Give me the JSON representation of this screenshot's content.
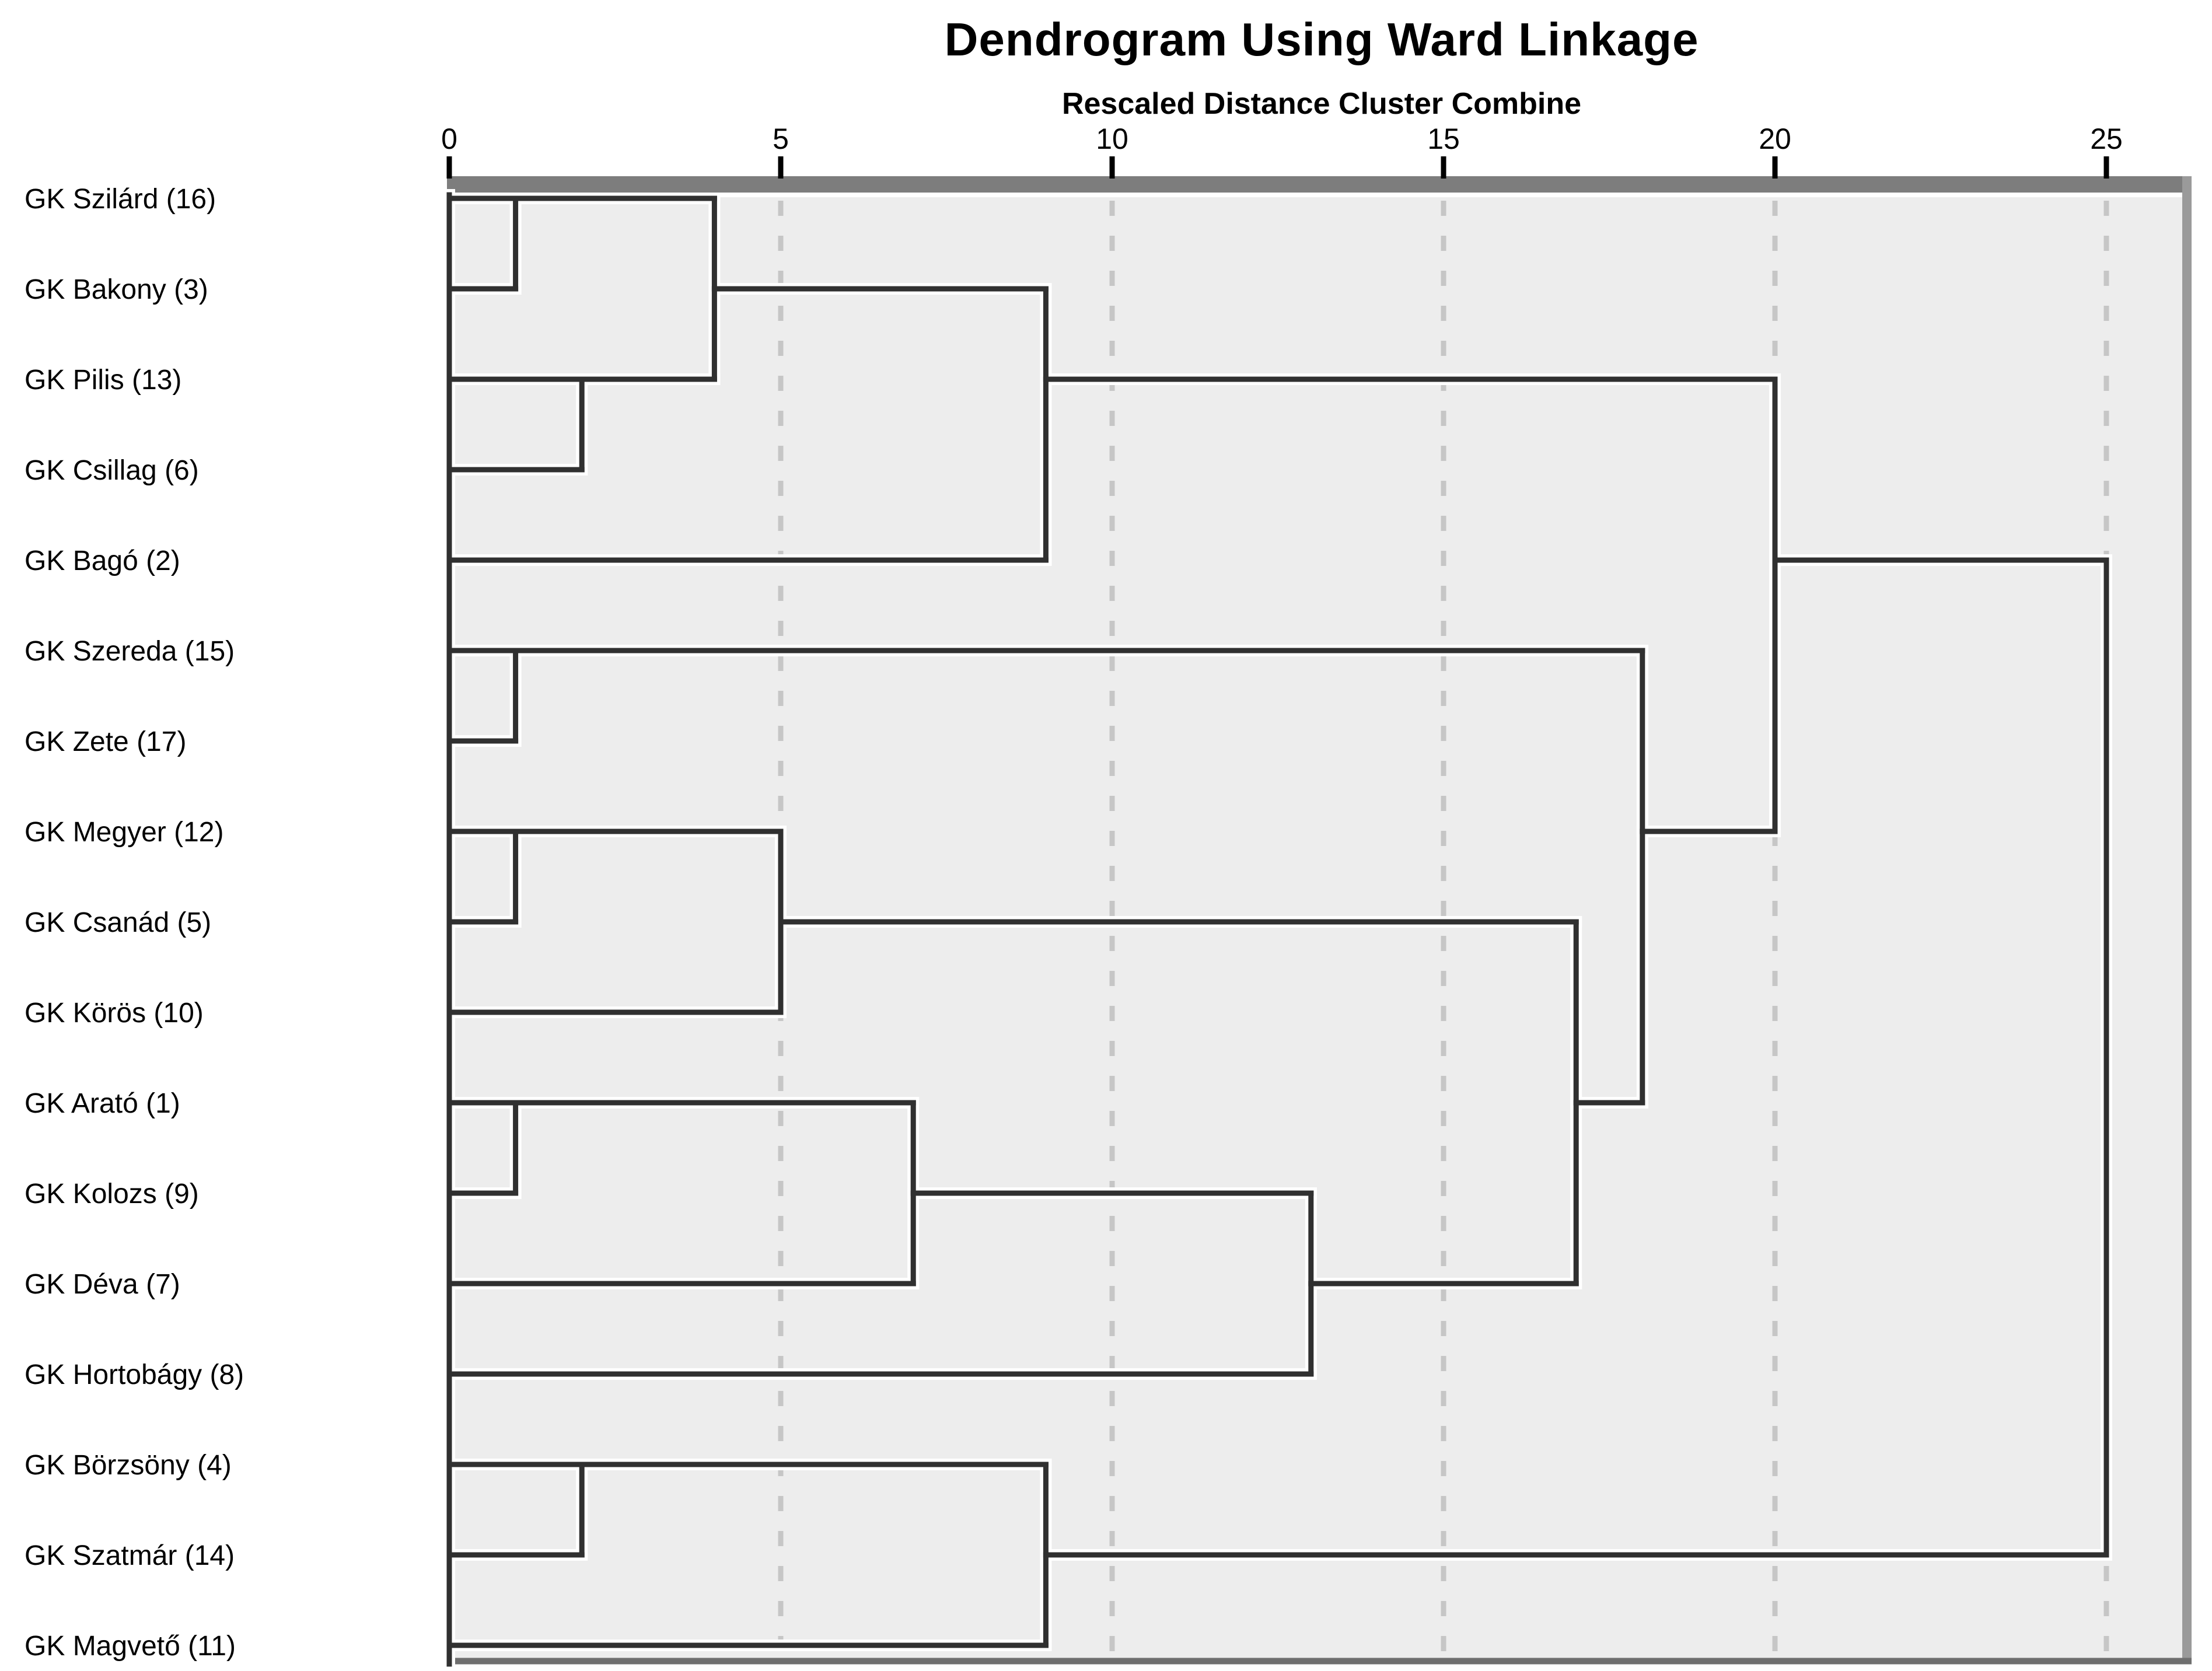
{
  "chart_data": {
    "type": "dendrogram",
    "title": "Dendrogram Using Ward Linkage",
    "subtitle": "Rescaled Distance Cluster Combine",
    "orientation": "horizontal",
    "xlim": [
      0,
      25
    ],
    "axis_ticks": [
      0,
      5,
      10,
      15,
      20,
      25
    ],
    "grid": "dashed vertical gridlines at 5,10,15,20,25",
    "legend_position": "none",
    "leaves": [
      "GK Szilárd (16)",
      "GK Bakony (3)",
      "GK Pilis (13)",
      "GK Csillag (6)",
      "GK Bagó (2)",
      "GK Szereda (15)",
      "GK Zete (17)",
      "GK Megyer (12)",
      "GK Csanád (5)",
      "GK Körös (10)",
      "GK Arató (1)",
      "GK Kolozs (9)",
      "GK Déva (7)",
      "GK Hortobágy (8)",
      "GK Börzsöny (4)",
      "GK Szatmár (14)",
      "GK Magvető (11)"
    ],
    "merges": [
      {
        "id": "m1",
        "a": "0",
        "b": "1",
        "distance": 1,
        "out_row": 0
      },
      {
        "id": "m2",
        "a": "2",
        "b": "3",
        "distance": 2,
        "out_row": 2
      },
      {
        "id": "m3",
        "a": "m1",
        "b": "m2",
        "distance": 4,
        "out_row": 1
      },
      {
        "id": "m4",
        "a": "m3",
        "b": "4",
        "distance": 9,
        "out_row": 2
      },
      {
        "id": "m5",
        "a": "5",
        "b": "6",
        "distance": 1,
        "out_row": 5
      },
      {
        "id": "m6",
        "a": "7",
        "b": "8",
        "distance": 1,
        "out_row": 7
      },
      {
        "id": "m7",
        "a": "m6",
        "b": "9",
        "distance": 5,
        "out_row": 8
      },
      {
        "id": "m8",
        "a": "10",
        "b": "11",
        "distance": 1,
        "out_row": 10
      },
      {
        "id": "m9",
        "a": "m8",
        "b": "12",
        "distance": 7,
        "out_row": 11
      },
      {
        "id": "m10",
        "a": "m9",
        "b": "13",
        "distance": 13,
        "out_row": 12
      },
      {
        "id": "m11",
        "a": "m7",
        "b": "m10",
        "distance": 17,
        "out_row": 10
      },
      {
        "id": "m12",
        "a": "m5",
        "b": "m11",
        "distance": 18,
        "out_row": 7
      },
      {
        "id": "m13",
        "a": "m4",
        "b": "m12",
        "distance": 20,
        "out_row": 4
      },
      {
        "id": "m14",
        "a": "14",
        "b": "15",
        "distance": 2,
        "out_row": 14
      },
      {
        "id": "m15",
        "a": "m14",
        "b": "16",
        "distance": 9,
        "out_row": 15
      },
      {
        "id": "m16",
        "a": "m13",
        "b": "m15",
        "distance": 25,
        "out_row": null
      }
    ],
    "colors": {
      "page_background": "#ffffff",
      "panel_background": "#ededed",
      "tree_line": "#303030",
      "tree_halo": "#ffffff",
      "gridline": "#c6c6c6",
      "axis_bar": "#7d7d7d",
      "right_border": "#9a9a9a",
      "bottom_border": "#6f6f6f",
      "text": "#000000"
    }
  }
}
